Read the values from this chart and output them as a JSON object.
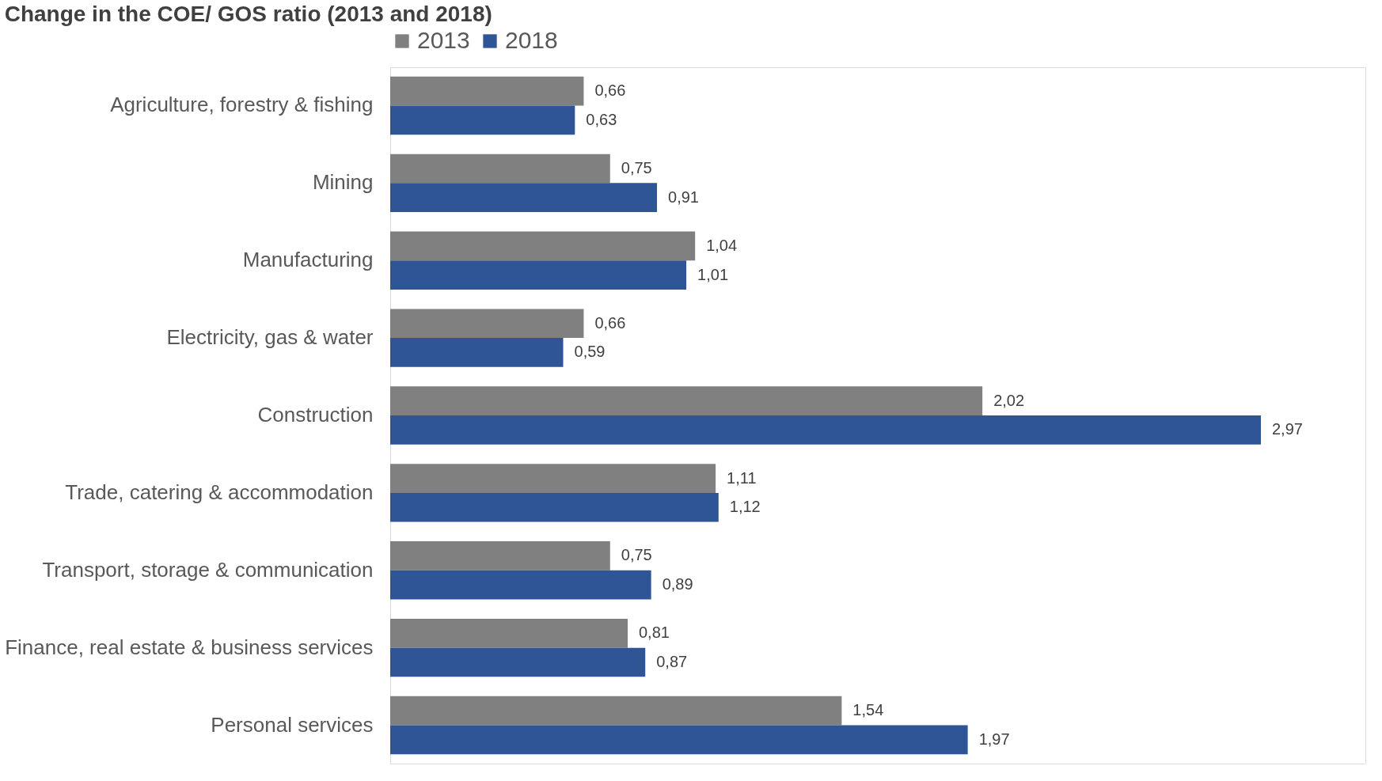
{
  "chart_data": {
    "type": "bar",
    "orientation": "horizontal",
    "title": "Change in the COE/ GOS ratio (2013 and 2018)",
    "categories": [
      "Agriculture, forestry & fishing",
      "Mining",
      "Manufacturing",
      "Electricity, gas & water",
      "Construction",
      "Trade, catering & accommodation",
      "Transport, storage & communication",
      "Finance, real estate & business services",
      "Personal services"
    ],
    "series": [
      {
        "name": "2013",
        "color": "#808080",
        "values": [
          0.66,
          0.75,
          1.04,
          0.66,
          2.02,
          1.11,
          0.75,
          0.81,
          1.54
        ],
        "value_labels": [
          "0,66",
          "0,75",
          "1,04",
          "0,66",
          "2,02",
          "1,11",
          "0,75",
          "0,81",
          "1,54"
        ]
      },
      {
        "name": "2018",
        "color": "#2f5597",
        "values": [
          0.63,
          0.91,
          1.01,
          0.59,
          2.97,
          1.12,
          0.89,
          0.87,
          1.97
        ],
        "value_labels": [
          "0,63",
          "0,91",
          "1,01",
          "0,59",
          "2,97",
          "1,12",
          "0,89",
          "0,87",
          "1,97"
        ]
      }
    ],
    "legend": "top",
    "grid": false,
    "tick_labels": "y"
  }
}
